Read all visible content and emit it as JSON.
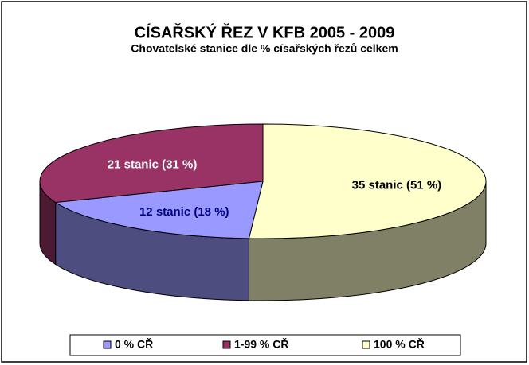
{
  "chart_data": {
    "type": "pie3d",
    "title": "CÍSAŘSKÝ ŘEZ V KFB 2005 - 2009",
    "subtitle": "Chovatelské stanice dle % císařských řezů celkem",
    "categories": [
      "0 % CŘ",
      "1-99 % CŘ",
      "100 % CŘ"
    ],
    "values": [
      18,
      31,
      51
    ],
    "value_labels": [
      "12 stanic (18 %)",
      "21 stanic (31 %)",
      "35 stanic (51 %)"
    ],
    "colors": [
      "#9999ff",
      "#993366",
      "#ffffcc"
    ],
    "label_colors": [
      "#000080",
      "#ffffff",
      "#000000"
    ],
    "legend": "bottom"
  }
}
